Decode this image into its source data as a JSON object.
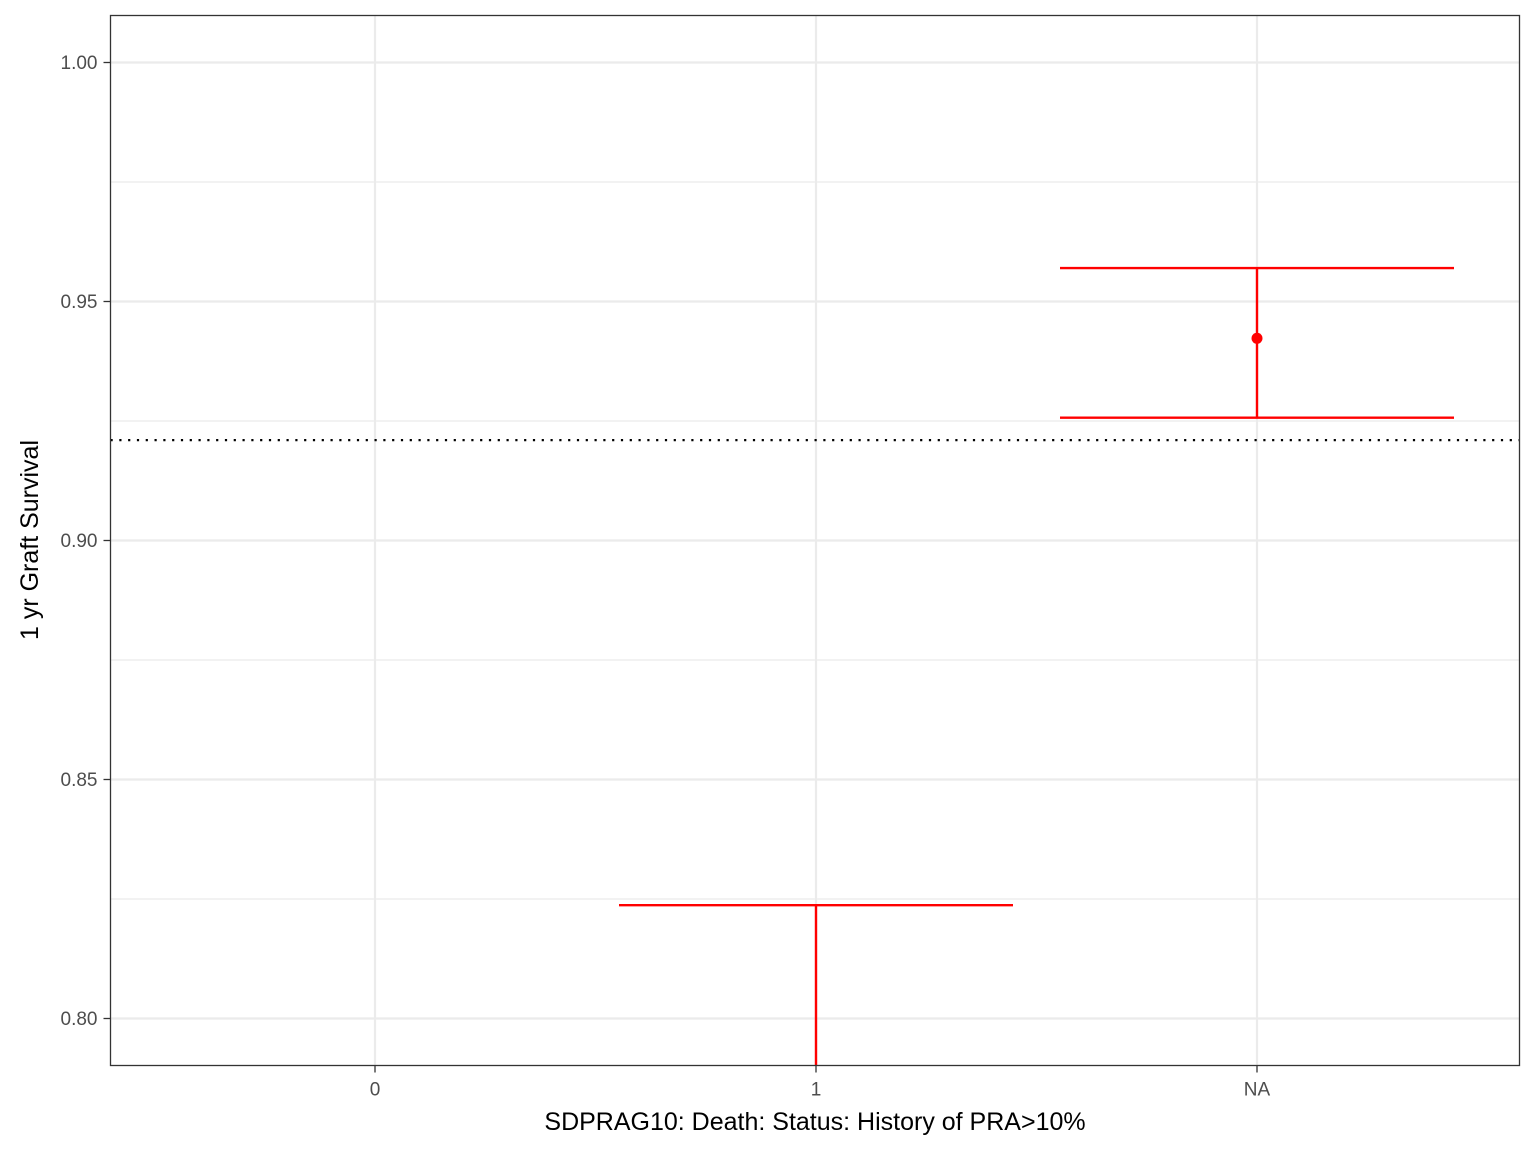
{
  "chart_data": {
    "type": "errorbar",
    "xlabel": "SDPRAG10: Death: Status: History of PRA>10%",
    "ylabel": "1 yr Graft Survival",
    "categories": [
      "0",
      "1",
      "NA"
    ],
    "ylim": [
      0.79,
      1.01
    ],
    "yticks": [
      0.8,
      0.85,
      0.9,
      0.95,
      1.0
    ],
    "ytick_labels": [
      "0.80",
      "0.85",
      "0.90",
      "0.95",
      "1.00"
    ],
    "reference_line": {
      "y": 0.921,
      "style": "dotted",
      "color": "#000000"
    },
    "series": [
      {
        "color": "#ff0000",
        "points": [
          {
            "category": "1",
            "estimate": null,
            "lower": 0.79,
            "upper": 0.8237
          },
          {
            "category": "NA",
            "estimate": 0.9423,
            "lower": 0.9257,
            "upper": 0.957
          }
        ]
      }
    ],
    "grid": true,
    "theme": "bw"
  }
}
